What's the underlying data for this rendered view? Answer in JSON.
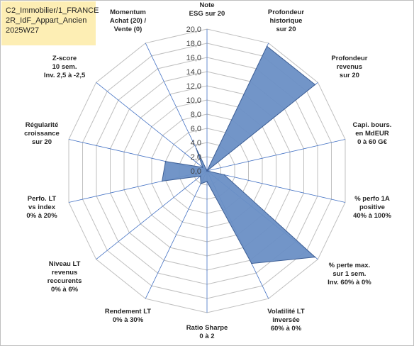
{
  "title_lines": [
    "C2_Immobilier/1_FRANCE",
    "2R_IdF_Appart_Ancien",
    "2025W27"
  ],
  "chart_data": {
    "type": "radar",
    "scale": {
      "min": 0,
      "max": 20,
      "step": 2,
      "tick_labels": [
        "0,0",
        "2,0",
        "4,0",
        "6,0",
        "8,0",
        "10,0",
        "12,0",
        "14,0",
        "16,0",
        "18,0",
        "20,0"
      ]
    },
    "axes": [
      [
        "Note",
        "ESG sur 20"
      ],
      [
        "Profondeur",
        "historique",
        "sur 20"
      ],
      [
        "Profondeur",
        "revenus",
        "sur 20"
      ],
      [
        "Capi. bours.",
        "en MdEUR",
        "0 à 60 G€"
      ],
      [
        "% perfo 1A",
        "positive",
        "40% à 100%"
      ],
      [
        "% perte max.",
        "sur 1 sem.",
        "Inv. 60% à 0%"
      ],
      [
        "Volatilité LT",
        "inversée",
        "60% à 0%"
      ],
      [
        "Ratio Sharpe",
        "0 à 2"
      ],
      [
        "Rendement LT",
        "0% à 30%"
      ],
      [
        "Niveau LT",
        "revenus",
        "reccurents",
        "0% à 6%"
      ],
      [
        "Perfo. LT",
        "vs index",
        "0% à 20%"
      ],
      [
        "Régularité",
        "croissance",
        "sur 20"
      ],
      [
        "Z-score",
        "10 sem.",
        "Inv. 2,5 à -2,5"
      ],
      [
        "Momentum",
        "Achat (20) /",
        "Vente (0)"
      ]
    ],
    "series": [
      {
        "values": [
          0,
          19.5,
          19.5,
          0,
          2.5,
          19.5,
          14.5,
          1.5,
          2.0,
          1.2,
          6.5,
          6.0,
          0.8,
          3.5
        ],
        "color": "#6a8fc5",
        "stroke": "#3e5f95"
      }
    ],
    "grid": true,
    "legend": "none"
  }
}
